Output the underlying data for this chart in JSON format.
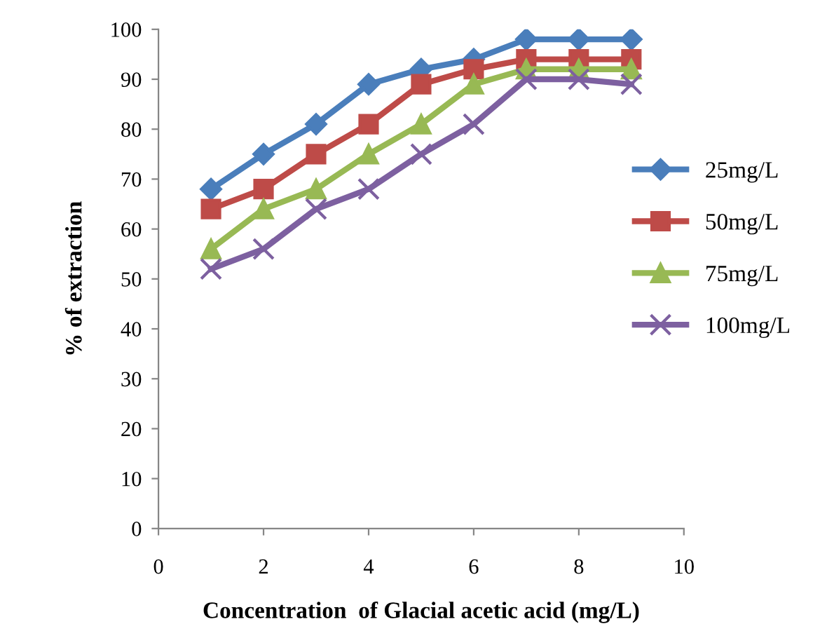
{
  "chart_data": {
    "type": "line",
    "xlabel": "Concentration  of Glacial acetic acid (mg/L)",
    "ylabel": "% of extraction",
    "x": [
      1,
      2,
      3,
      4,
      5,
      6,
      7,
      8,
      9
    ],
    "series": [
      {
        "name": "25mg/L",
        "color": "#4a7ebb",
        "marker": "diamond",
        "values": [
          68,
          75,
          81,
          89,
          92,
          94,
          98,
          98,
          98
        ]
      },
      {
        "name": "50mg/L",
        "color": "#be4b48",
        "marker": "square",
        "values": [
          64,
          68,
          75,
          81,
          89,
          92,
          94,
          94,
          94
        ]
      },
      {
        "name": "75mg/L",
        "color": "#98b954",
        "marker": "triangle",
        "values": [
          56,
          64,
          68,
          75,
          81,
          89,
          92,
          92,
          92
        ]
      },
      {
        "name": "100mg/L",
        "color": "#7d60a0",
        "marker": "cross",
        "values": [
          52,
          56,
          64,
          68,
          75,
          81,
          90,
          90,
          89
        ]
      }
    ],
    "xlim": [
      0,
      10
    ],
    "xticks": [
      0,
      2,
      4,
      6,
      8,
      10
    ],
    "ylim": [
      0,
      100
    ],
    "yticks": [
      0,
      10,
      20,
      30,
      40,
      50,
      60,
      70,
      80,
      90,
      100
    ],
    "grid": false,
    "legend": "right",
    "line_style": "solid"
  }
}
